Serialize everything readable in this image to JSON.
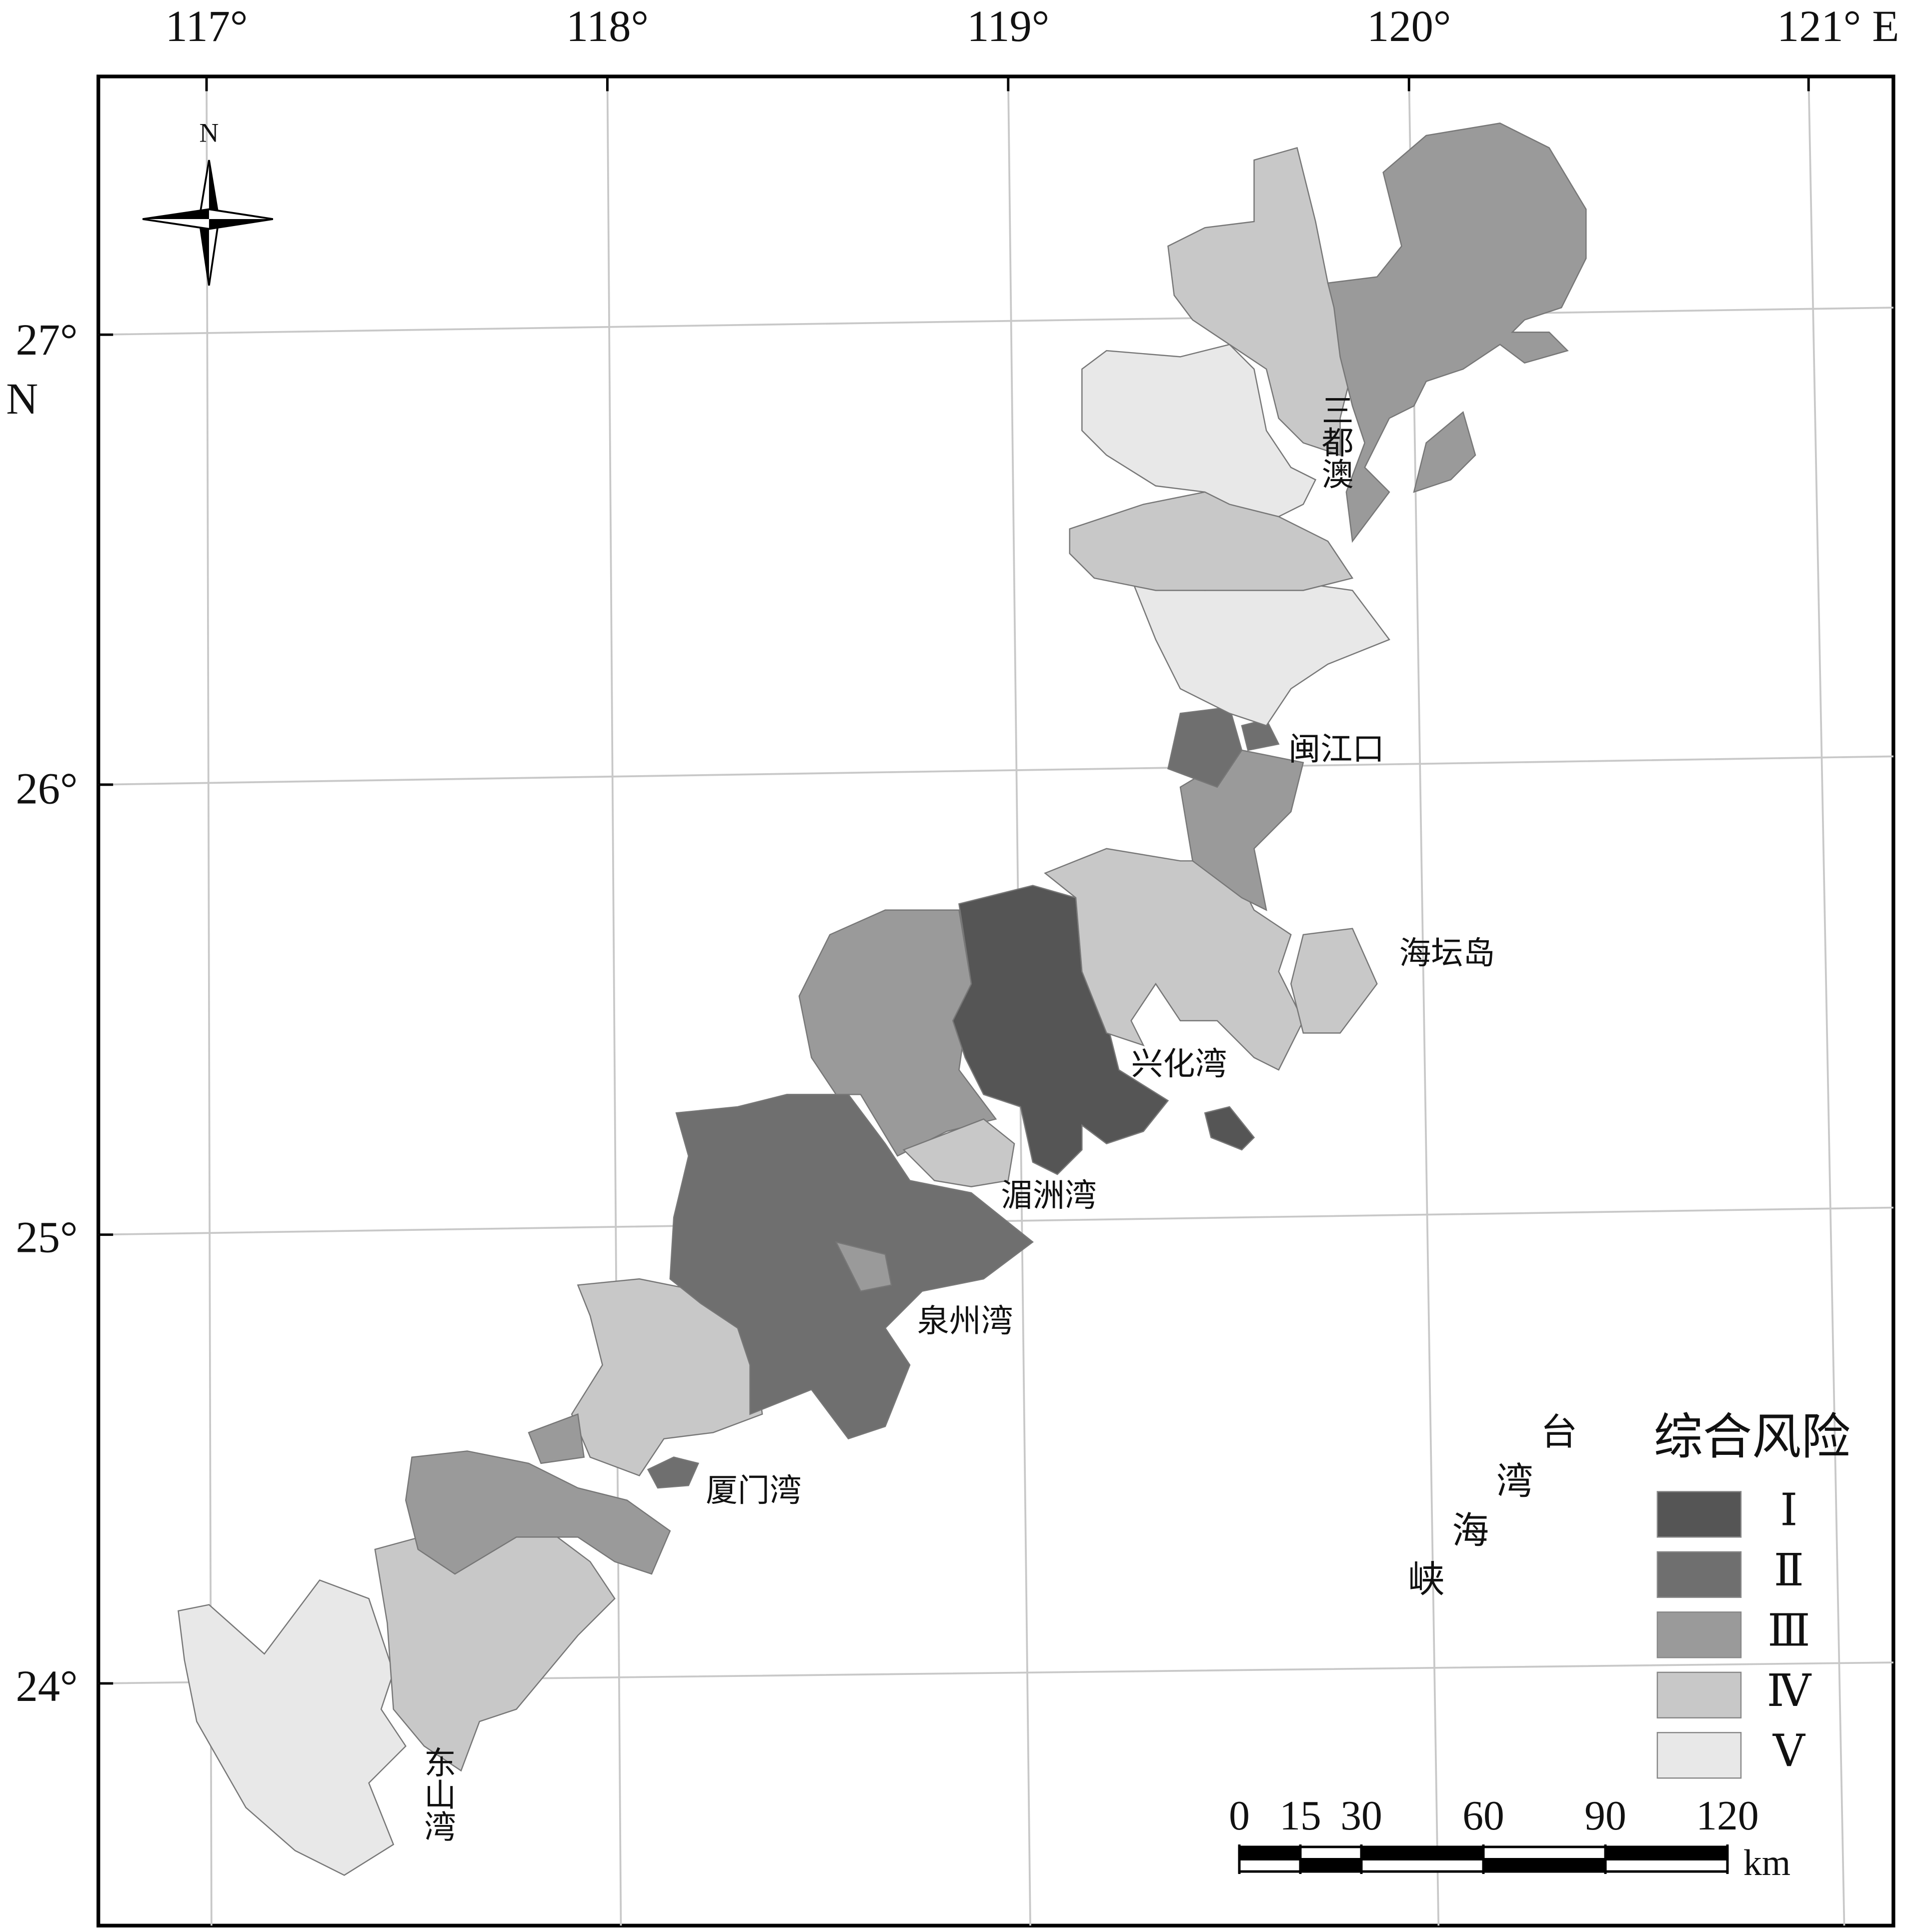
{
  "top_labels": [
    "117°",
    "118°",
    "119°",
    "120°",
    "121° E"
  ],
  "left_labels": [
    "27°",
    "26°",
    "25°",
    "24°"
  ],
  "left_unit": "N",
  "compass": "N",
  "place_labels": {
    "sandu": "三都澳",
    "minjiang": "闽江口",
    "haitan": "海坛岛",
    "xinghua": "兴化湾",
    "meizhou": "湄洲湾",
    "quanzhou": "泉州湾",
    "xiamen": "厦门湾",
    "dongshan": "东山湾"
  },
  "strait": [
    "台",
    "湾",
    "海",
    "峡"
  ],
  "legend": {
    "title": "综合风险",
    "items": [
      {
        "label": "Ⅰ",
        "color": "#555555"
      },
      {
        "label": "Ⅱ",
        "color": "#6f6f6f"
      },
      {
        "label": "Ⅲ",
        "color": "#9a9a9a"
      },
      {
        "label": "Ⅳ",
        "color": "#c8c8c8"
      },
      {
        "label": "Ⅴ",
        "color": "#e8e8e8"
      }
    ]
  },
  "scale_bar": {
    "ticks": [
      0,
      15,
      30,
      60,
      90,
      120
    ],
    "unit": "km"
  }
}
